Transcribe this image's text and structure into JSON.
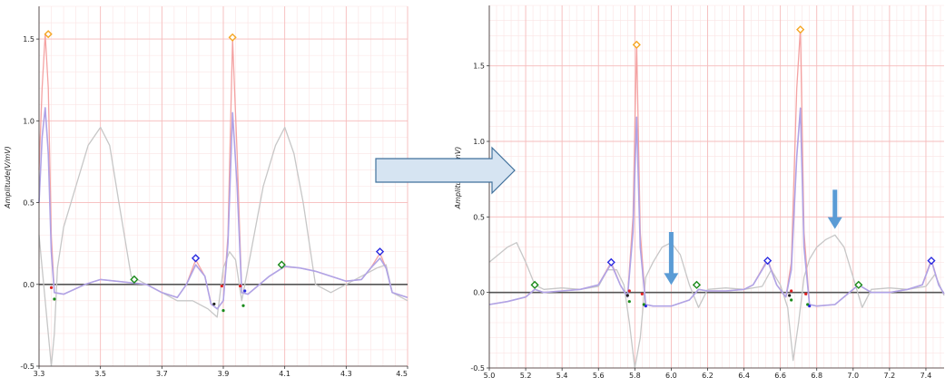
{
  "figure": {
    "arrow_fill": "#d6e4f2",
    "arrow_stroke": "#41719c",
    "marker_arrow_color": "#5b9bd5"
  },
  "chart_data": [
    {
      "type": "line",
      "title": "",
      "xlabel": "",
      "ylabel": "Amplitude(V/mV)",
      "xlim": [
        3.3,
        4.5
      ],
      "ylim": [
        -0.5,
        1.7
      ],
      "xticks": [
        "3.3",
        "3.5",
        "3.7",
        "3.9",
        "4.1",
        "4.3",
        "4.5"
      ],
      "yticks": [
        "-0.5",
        "0.0",
        "0.5",
        "1.0",
        "1.5"
      ],
      "grid": true,
      "series": [
        {
          "color": "#f4a3a3",
          "x": [
            3.3,
            3.31,
            3.32,
            3.33,
            3.34,
            3.35,
            3.38,
            3.45,
            3.5,
            3.55,
            3.6,
            3.65,
            3.7,
            3.75,
            3.78,
            3.81,
            3.84,
            3.86,
            3.88,
            3.9,
            3.915,
            3.93,
            3.945,
            3.96,
            3.98,
            4.05,
            4.1,
            4.15,
            4.2,
            4.25,
            4.3,
            4.35,
            4.38,
            4.41,
            4.43,
            4.45,
            4.5
          ],
          "y": [
            0.7,
            1.2,
            1.53,
            1.2,
            0.3,
            -0.05,
            -0.06,
            0.0,
            0.03,
            0.02,
            0.01,
            0.0,
            -0.05,
            -0.08,
            0.0,
            0.15,
            0.05,
            -0.12,
            -0.15,
            -0.1,
            0.3,
            1.5,
            0.8,
            -0.05,
            -0.06,
            0.05,
            0.11,
            0.1,
            0.08,
            0.05,
            0.02,
            0.03,
            0.1,
            0.19,
            0.1,
            -0.05,
            -0.08
          ]
        },
        {
          "color": "#b0a3e6",
          "x": [
            3.3,
            3.31,
            3.32,
            3.33,
            3.34,
            3.35,
            3.38,
            3.45,
            3.5,
            3.55,
            3.6,
            3.65,
            3.7,
            3.75,
            3.78,
            3.81,
            3.84,
            3.86,
            3.88,
            3.9,
            3.915,
            3.93,
            3.945,
            3.96,
            3.98,
            4.05,
            4.1,
            4.15,
            4.2,
            4.25,
            4.3,
            4.35,
            4.38,
            4.41,
            4.43,
            4.45,
            4.5
          ],
          "y": [
            0.5,
            0.9,
            1.08,
            0.8,
            0.2,
            -0.05,
            -0.06,
            0.0,
            0.03,
            0.02,
            0.01,
            0.0,
            -0.05,
            -0.08,
            0.0,
            0.12,
            0.05,
            -0.12,
            -0.15,
            -0.1,
            0.25,
            1.05,
            0.6,
            -0.05,
            -0.06,
            0.05,
            0.11,
            0.1,
            0.08,
            0.05,
            0.02,
            0.03,
            0.1,
            0.16,
            0.1,
            -0.05,
            -0.08
          ]
        },
        {
          "color": "#c7c7c7",
          "x": [
            3.3,
            3.32,
            3.34,
            3.35,
            3.36,
            3.38,
            3.42,
            3.46,
            3.5,
            3.53,
            3.56,
            3.6,
            3.65,
            3.7,
            3.75,
            3.8,
            3.85,
            3.88,
            3.9,
            3.92,
            3.94,
            3.96,
            3.99,
            4.03,
            4.07,
            4.1,
            4.13,
            4.16,
            4.2,
            4.25,
            4.3,
            4.35,
            4.4,
            4.43,
            4.45,
            4.5
          ],
          "y": [
            0.3,
            -0.1,
            -0.5,
            -0.3,
            0.1,
            0.35,
            0.6,
            0.85,
            0.96,
            0.85,
            0.5,
            0.05,
            0.0,
            -0.05,
            -0.1,
            -0.1,
            -0.15,
            -0.2,
            0.1,
            0.2,
            0.15,
            -0.1,
            0.2,
            0.6,
            0.85,
            0.96,
            0.8,
            0.5,
            0.0,
            -0.05,
            0.0,
            0.05,
            0.1,
            0.12,
            -0.05,
            -0.1
          ]
        }
      ],
      "markers": [
        {
          "shape": "diamond",
          "color": "#f5a623",
          "x": 3.33,
          "y": 1.53
        },
        {
          "shape": "diamond",
          "color": "#f5a623",
          "x": 3.93,
          "y": 1.51
        },
        {
          "shape": "diamond",
          "color": "#1a8a1a",
          "x": 3.61,
          "y": 0.03
        },
        {
          "shape": "diamond",
          "color": "#1a8a1a",
          "x": 4.09,
          "y": 0.12
        },
        {
          "shape": "diamond",
          "color": "#2a2ae0",
          "x": 3.81,
          "y": 0.16
        },
        {
          "shape": "diamond",
          "color": "#2a2ae0",
          "x": 4.41,
          "y": 0.2
        },
        {
          "shape": "dot",
          "color": "#e02020",
          "x": 3.34,
          "y": -0.02
        },
        {
          "shape": "dot",
          "color": "#1a8a1a",
          "x": 3.35,
          "y": -0.09
        },
        {
          "shape": "dot",
          "color": "#e02020",
          "x": 3.895,
          "y": -0.01
        },
        {
          "shape": "dot",
          "color": "#1a8a1a",
          "x": 3.9,
          "y": -0.16
        },
        {
          "shape": "dot",
          "color": "#222222",
          "x": 3.87,
          "y": -0.12
        },
        {
          "shape": "dot",
          "color": "#e02020",
          "x": 3.955,
          "y": -0.01
        },
        {
          "shape": "dot",
          "color": "#1a8a1a",
          "x": 3.965,
          "y": -0.13
        },
        {
          "shape": "dot",
          "color": "#2a2ae0",
          "x": 3.97,
          "y": -0.04
        }
      ]
    },
    {
      "type": "line",
      "title": "",
      "xlabel": "",
      "ylabel": "Amplitude(V/mV)",
      "xlim": [
        5.0,
        7.5
      ],
      "ylim": [
        -0.5,
        1.9
      ],
      "xticks": [
        "5.0",
        "5.2",
        "5.4",
        "5.6",
        "5.8",
        "6.0",
        "6.2",
        "6.4",
        "6.6",
        "6.8",
        "7.0",
        "7.2",
        "7.4"
      ],
      "yticks": [
        "-0.5",
        "0.0",
        "0.5",
        "1.0",
        "1.5"
      ],
      "grid": true,
      "series": [
        {
          "color": "#f4a3a3",
          "x": [
            5.0,
            5.1,
            5.2,
            5.25,
            5.3,
            5.4,
            5.5,
            5.6,
            5.67,
            5.72,
            5.76,
            5.79,
            5.81,
            5.83,
            5.86,
            5.9,
            6.0,
            6.1,
            6.15,
            6.2,
            6.3,
            6.4,
            6.45,
            6.53,
            6.58,
            6.63,
            6.66,
            6.69,
            6.71,
            6.73,
            6.76,
            6.8,
            6.9,
            7.0,
            7.03,
            7.1,
            7.2,
            7.3,
            7.38,
            7.43,
            7.47,
            7.5
          ],
          "y": [
            -0.08,
            -0.06,
            -0.03,
            0.02,
            0.0,
            0.01,
            0.02,
            0.05,
            0.2,
            0.05,
            -0.03,
            0.5,
            1.65,
            0.4,
            -0.08,
            -0.09,
            -0.09,
            -0.05,
            0.02,
            0.01,
            0.01,
            0.02,
            0.05,
            0.22,
            0.05,
            -0.03,
            0.2,
            1.35,
            1.75,
            0.4,
            -0.08,
            -0.09,
            -0.08,
            0.02,
            0.05,
            0.0,
            0.0,
            0.02,
            0.05,
            0.22,
            0.05,
            -0.01
          ]
        },
        {
          "color": "#b0a3e6",
          "x": [
            5.0,
            5.1,
            5.2,
            5.25,
            5.3,
            5.4,
            5.5,
            5.6,
            5.67,
            5.72,
            5.76,
            5.79,
            5.81,
            5.83,
            5.86,
            5.9,
            6.0,
            6.1,
            6.15,
            6.2,
            6.3,
            6.4,
            6.45,
            6.53,
            6.58,
            6.63,
            6.66,
            6.69,
            6.71,
            6.73,
            6.76,
            6.8,
            6.9,
            7.0,
            7.03,
            7.1,
            7.2,
            7.3,
            7.38,
            7.43,
            7.47,
            7.5
          ],
          "y": [
            -0.08,
            -0.06,
            -0.03,
            0.02,
            0.0,
            0.01,
            0.02,
            0.05,
            0.19,
            0.05,
            -0.03,
            0.4,
            1.16,
            0.3,
            -0.08,
            -0.09,
            -0.09,
            -0.05,
            0.02,
            0.01,
            0.01,
            0.02,
            0.05,
            0.21,
            0.05,
            -0.03,
            0.15,
            0.9,
            1.22,
            0.3,
            -0.08,
            -0.09,
            -0.08,
            0.02,
            0.05,
            0.0,
            0.0,
            0.02,
            0.05,
            0.21,
            0.05,
            -0.01
          ]
        },
        {
          "color": "#c7c7c7",
          "x": [
            5.0,
            5.1,
            5.15,
            5.2,
            5.25,
            5.3,
            5.4,
            5.5,
            5.6,
            5.65,
            5.7,
            5.74,
            5.77,
            5.8,
            5.83,
            5.86,
            5.9,
            5.95,
            6.0,
            6.05,
            6.1,
            6.15,
            6.2,
            6.3,
            6.4,
            6.5,
            6.55,
            6.6,
            6.64,
            6.67,
            6.7,
            6.73,
            6.76,
            6.8,
            6.85,
            6.9,
            6.95,
            7.0,
            7.05,
            7.1,
            7.2,
            7.3,
            7.4,
            7.45,
            7.5
          ],
          "y": [
            0.2,
            0.3,
            0.33,
            0.2,
            0.05,
            0.02,
            0.03,
            0.02,
            0.04,
            0.15,
            0.15,
            0.05,
            -0.2,
            -0.5,
            -0.3,
            0.1,
            0.2,
            0.3,
            0.33,
            0.25,
            0.05,
            -0.1,
            0.02,
            0.03,
            0.02,
            0.04,
            0.15,
            0.05,
            -0.1,
            -0.45,
            -0.2,
            0.1,
            0.22,
            0.3,
            0.35,
            0.38,
            0.3,
            0.1,
            -0.1,
            0.02,
            0.03,
            0.02,
            0.04,
            0.12,
            -0.02
          ]
        }
      ],
      "markers": [
        {
          "shape": "diamond",
          "color": "#f5a623",
          "x": 5.81,
          "y": 1.64
        },
        {
          "shape": "diamond",
          "color": "#f5a623",
          "x": 6.71,
          "y": 1.74
        },
        {
          "shape": "diamond",
          "color": "#1a8a1a",
          "x": 5.25,
          "y": 0.05
        },
        {
          "shape": "diamond",
          "color": "#1a8a1a",
          "x": 6.14,
          "y": 0.05
        },
        {
          "shape": "diamond",
          "color": "#1a8a1a",
          "x": 7.03,
          "y": 0.05
        },
        {
          "shape": "diamond",
          "color": "#2a2ae0",
          "x": 5.67,
          "y": 0.2
        },
        {
          "shape": "diamond",
          "color": "#2a2ae0",
          "x": 6.53,
          "y": 0.21
        },
        {
          "shape": "diamond",
          "color": "#2a2ae0",
          "x": 7.43,
          "y": 0.21
        },
        {
          "shape": "dot",
          "color": "#e02020",
          "x": 5.77,
          "y": 0.01
        },
        {
          "shape": "dot",
          "color": "#222222",
          "x": 5.76,
          "y": -0.02
        },
        {
          "shape": "dot",
          "color": "#1a8a1a",
          "x": 5.77,
          "y": -0.06
        },
        {
          "shape": "dot",
          "color": "#e02020",
          "x": 5.84,
          "y": -0.01
        },
        {
          "shape": "dot",
          "color": "#1a8a1a",
          "x": 5.85,
          "y": -0.08
        },
        {
          "shape": "dot",
          "color": "#2a2ae0",
          "x": 5.86,
          "y": -0.09
        },
        {
          "shape": "dot",
          "color": "#e02020",
          "x": 6.66,
          "y": 0.01
        },
        {
          "shape": "dot",
          "color": "#222222",
          "x": 6.65,
          "y": -0.02
        },
        {
          "shape": "dot",
          "color": "#1a8a1a",
          "x": 6.66,
          "y": -0.05
        },
        {
          "shape": "dot",
          "color": "#e02020",
          "x": 6.74,
          "y": -0.01
        },
        {
          "shape": "dot",
          "color": "#1a8a1a",
          "x": 6.75,
          "y": -0.08
        },
        {
          "shape": "dot",
          "color": "#2a2ae0",
          "x": 6.76,
          "y": -0.09
        }
      ],
      "annotations": [
        {
          "type": "down-arrow",
          "color": "#5b9bd5",
          "x": 6.0,
          "y_from": 0.4,
          "y_to": 0.05
        },
        {
          "type": "down-arrow",
          "color": "#5b9bd5",
          "x": 6.9,
          "y_from": 0.68,
          "y_to": 0.42
        }
      ]
    }
  ]
}
